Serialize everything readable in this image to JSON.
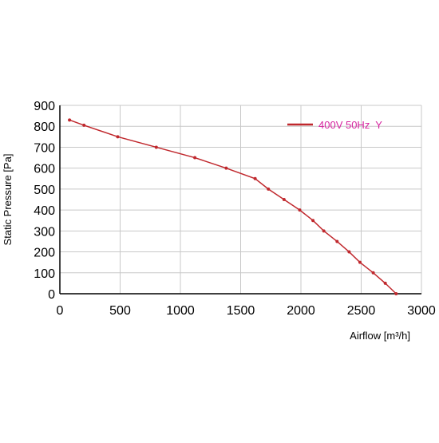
{
  "chart_data": {
    "type": "line",
    "x_label": "Airflow [m³/h]",
    "y_label": "Static Pressure [Pa]",
    "xlim": [
      0,
      3000
    ],
    "ylim": [
      0,
      900
    ],
    "xticks": [
      0,
      500,
      1000,
      1500,
      2000,
      2500,
      3000
    ],
    "yticks": [
      0,
      100,
      200,
      300,
      400,
      500,
      600,
      700,
      800,
      900
    ],
    "grid": true,
    "legend": "upper right",
    "series": [
      {
        "name": "400V 50Hz  Y",
        "color": "#c0282d",
        "x": [
          80,
          200,
          480,
          800,
          1120,
          1380,
          1620,
          1730,
          1860,
          1990,
          2100,
          2190,
          2300,
          2400,
          2490,
          2600,
          2700,
          2790
        ],
        "values": [
          830,
          805,
          750,
          700,
          650,
          600,
          550,
          500,
          450,
          400,
          350,
          300,
          250,
          200,
          150,
          100,
          50,
          0
        ]
      }
    ]
  }
}
